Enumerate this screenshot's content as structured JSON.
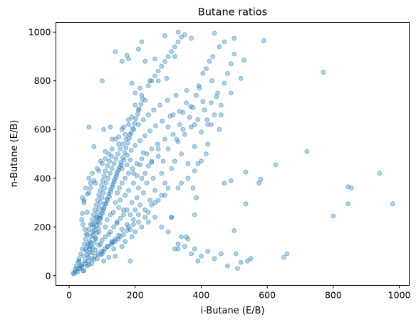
{
  "chart_data": {
    "type": "scatter",
    "title": "Butane ratios",
    "xlabel": "i-Butane (E/B)",
    "ylabel": "n-Butane (E/B)",
    "xlim": [
      -40,
      1030
    ],
    "ylim": [
      -40,
      1040
    ],
    "xticks": [
      0,
      200,
      400,
      600,
      800,
      1000
    ],
    "yticks": [
      0,
      200,
      400,
      600,
      800,
      1000
    ],
    "xtick_labels": [
      "0",
      "200",
      "400",
      "600",
      "800",
      "1000"
    ],
    "ytick_labels": [
      "0",
      "200",
      "400",
      "600",
      "800",
      "1000"
    ],
    "grid": false,
    "legend": "none",
    "marker_color": "#1f77b4",
    "marker_alpha": 0.35,
    "points": [
      [
        12,
        10
      ],
      [
        18,
        25
      ],
      [
        22,
        40
      ],
      [
        25,
        15
      ],
      [
        28,
        55
      ],
      [
        30,
        70
      ],
      [
        32,
        30
      ],
      [
        35,
        90
      ],
      [
        38,
        45
      ],
      [
        40,
        110
      ],
      [
        42,
        20
      ],
      [
        44,
        80
      ],
      [
        46,
        130
      ],
      [
        48,
        60
      ],
      [
        50,
        150
      ],
      [
        52,
        100
      ],
      [
        54,
        40
      ],
      [
        55,
        170
      ],
      [
        57,
        120
      ],
      [
        58,
        75
      ],
      [
        60,
        190
      ],
      [
        62,
        140
      ],
      [
        63,
        95
      ],
      [
        65,
        210
      ],
      [
        66,
        160
      ],
      [
        68,
        50
      ],
      [
        70,
        230
      ],
      [
        71,
        180
      ],
      [
        72,
        115
      ],
      [
        74,
        250
      ],
      [
        75,
        200
      ],
      [
        76,
        135
      ],
      [
        78,
        270
      ],
      [
        79,
        220
      ],
      [
        80,
        155
      ],
      [
        82,
        290
      ],
      [
        83,
        240
      ],
      [
        84,
        175
      ],
      [
        86,
        310
      ],
      [
        87,
        260
      ],
      [
        88,
        195
      ],
      [
        90,
        330
      ],
      [
        91,
        280
      ],
      [
        92,
        215
      ],
      [
        94,
        350
      ],
      [
        95,
        300
      ],
      [
        96,
        235
      ],
      [
        98,
        370
      ],
      [
        99,
        320
      ],
      [
        100,
        255
      ],
      [
        102,
        390
      ],
      [
        103,
        340
      ],
      [
        104,
        275
      ],
      [
        106,
        410
      ],
      [
        107,
        360
      ],
      [
        108,
        295
      ],
      [
        110,
        430
      ],
      [
        112,
        380
      ],
      [
        114,
        315
      ],
      [
        116,
        450
      ],
      [
        118,
        400
      ],
      [
        120,
        335
      ],
      [
        122,
        470
      ],
      [
        124,
        420
      ],
      [
        126,
        355
      ],
      [
        128,
        490
      ],
      [
        130,
        440
      ],
      [
        132,
        375
      ],
      [
        134,
        260
      ],
      [
        136,
        460
      ],
      [
        138,
        395
      ],
      [
        140,
        300
      ],
      [
        142,
        480
      ],
      [
        144,
        415
      ],
      [
        146,
        340
      ],
      [
        148,
        500
      ],
      [
        150,
        435
      ],
      [
        152,
        360
      ],
      [
        155,
        520
      ],
      [
        158,
        455
      ],
      [
        160,
        380
      ],
      [
        163,
        540
      ],
      [
        166,
        475
      ],
      [
        170,
        400
      ],
      [
        173,
        560
      ],
      [
        176,
        495
      ],
      [
        180,
        420
      ],
      [
        184,
        580
      ],
      [
        188,
        515
      ],
      [
        192,
        440
      ],
      [
        196,
        600
      ],
      [
        200,
        535
      ],
      [
        205,
        460
      ],
      [
        210,
        620
      ],
      [
        215,
        555
      ],
      [
        220,
        480
      ],
      [
        225,
        640
      ],
      [
        230,
        575
      ],
      [
        235,
        500
      ],
      [
        240,
        660
      ],
      [
        245,
        595
      ],
      [
        250,
        520
      ],
      [
        256,
        680
      ],
      [
        262,
        615
      ],
      [
        268,
        540
      ],
      [
        275,
        700
      ],
      [
        282,
        635
      ],
      [
        290,
        560
      ],
      [
        298,
        720
      ],
      [
        306,
        655
      ],
      [
        315,
        580
      ],
      [
        324,
        740
      ],
      [
        334,
        675
      ],
      [
        345,
        600
      ],
      [
        356,
        760
      ],
      [
        368,
        695
      ],
      [
        380,
        620
      ],
      [
        392,
        780
      ],
      [
        405,
        715
      ],
      [
        418,
        640
      ],
      [
        432,
        800
      ],
      [
        446,
        735
      ],
      [
        460,
        660
      ],
      [
        40,
        320
      ],
      [
        45,
        300
      ],
      [
        55,
        260
      ],
      [
        60,
        340
      ],
      [
        65,
        360
      ],
      [
        70,
        210
      ],
      [
        75,
        390
      ],
      [
        80,
        150
      ],
      [
        85,
        240
      ],
      [
        90,
        180
      ],
      [
        95,
        130
      ],
      [
        100,
        90
      ],
      [
        105,
        60
      ],
      [
        110,
        200
      ],
      [
        115,
        230
      ],
      [
        120,
        170
      ],
      [
        125,
        250
      ],
      [
        130,
        140
      ],
      [
        135,
        110
      ],
      [
        140,
        80
      ],
      [
        145,
        220
      ],
      [
        150,
        280
      ],
      [
        155,
        310
      ],
      [
        160,
        190
      ],
      [
        165,
        270
      ],
      [
        170,
        330
      ],
      [
        175,
        210
      ],
      [
        180,
        350
      ],
      [
        185,
        250
      ],
      [
        190,
        300
      ],
      [
        195,
        380
      ],
      [
        200,
        270
      ],
      [
        205,
        320
      ],
      [
        210,
        360
      ],
      [
        215,
        290
      ],
      [
        220,
        400
      ],
      [
        225,
        340
      ],
      [
        230,
        420
      ],
      [
        235,
        380
      ],
      [
        240,
        450
      ],
      [
        245,
        310
      ],
      [
        250,
        470
      ],
      [
        255,
        400
      ],
      [
        260,
        350
      ],
      [
        270,
        490
      ],
      [
        280,
        420
      ],
      [
        290,
        380
      ],
      [
        300,
        520
      ],
      [
        310,
        440
      ],
      [
        320,
        470
      ],
      [
        330,
        550
      ],
      [
        340,
        500
      ],
      [
        350,
        580
      ],
      [
        360,
        460
      ],
      [
        370,
        610
      ],
      [
        380,
        530
      ],
      [
        390,
        640
      ],
      [
        400,
        590
      ],
      [
        410,
        680
      ],
      [
        420,
        620
      ],
      [
        430,
        710
      ],
      [
        440,
        660
      ],
      [
        450,
        750
      ],
      [
        460,
        700
      ],
      [
        470,
        790
      ],
      [
        480,
        830
      ],
      [
        490,
        870
      ],
      [
        500,
        910
      ],
      [
        30,
        60
      ],
      [
        35,
        40
      ],
      [
        45,
        20
      ],
      [
        50,
        110
      ],
      [
        55,
        85
      ],
      [
        60,
        45
      ],
      [
        65,
        120
      ],
      [
        70,
        95
      ],
      [
        75,
        65
      ],
      [
        80,
        105
      ],
      [
        85,
        70
      ],
      [
        90,
        125
      ],
      [
        95,
        85
      ],
      [
        100,
        145
      ],
      [
        105,
        100
      ],
      [
        110,
        160
      ],
      [
        115,
        120
      ],
      [
        120,
        75
      ],
      [
        125,
        180
      ],
      [
        130,
        135
      ],
      [
        135,
        200
      ],
      [
        140,
        150
      ],
      [
        145,
        215
      ],
      [
        150,
        165
      ],
      [
        155,
        235
      ],
      [
        160,
        120
      ],
      [
        165,
        250
      ],
      [
        170,
        140
      ],
      [
        175,
        270
      ],
      [
        180,
        200
      ],
      [
        185,
        60
      ],
      [
        190,
        160
      ],
      [
        195,
        230
      ],
      [
        200,
        180
      ],
      [
        210,
        250
      ],
      [
        220,
        200
      ],
      [
        230,
        270
      ],
      [
        240,
        220
      ],
      [
        250,
        290
      ],
      [
        260,
        240
      ],
      [
        270,
        310
      ],
      [
        280,
        200
      ],
      [
        290,
        330
      ],
      [
        300,
        180
      ],
      [
        310,
        240
      ],
      [
        320,
        110
      ],
      [
        330,
        130
      ],
      [
        340,
        160
      ],
      [
        350,
        120
      ],
      [
        360,
        150
      ],
      [
        370,
        90
      ],
      [
        380,
        110
      ],
      [
        390,
        60
      ],
      [
        400,
        80
      ],
      [
        420,
        100
      ],
      [
        440,
        70
      ],
      [
        460,
        90
      ],
      [
        480,
        40
      ],
      [
        510,
        30
      ],
      [
        540,
        60
      ],
      [
        50,
        360
      ],
      [
        60,
        400
      ],
      [
        70,
        420
      ],
      [
        80,
        380
      ],
      [
        90,
        430
      ],
      [
        100,
        460
      ],
      [
        110,
        480
      ],
      [
        120,
        500
      ],
      [
        130,
        520
      ],
      [
        140,
        560
      ],
      [
        150,
        540
      ],
      [
        160,
        600
      ],
      [
        170,
        580
      ],
      [
        180,
        620
      ],
      [
        190,
        650
      ],
      [
        200,
        700
      ],
      [
        210,
        680
      ],
      [
        220,
        740
      ],
      [
        230,
        720
      ],
      [
        240,
        780
      ],
      [
        250,
        800
      ],
      [
        260,
        820
      ],
      [
        270,
        840
      ],
      [
        280,
        860
      ],
      [
        290,
        880
      ],
      [
        300,
        900
      ],
      [
        310,
        920
      ],
      [
        320,
        940
      ],
      [
        330,
        960
      ],
      [
        340,
        980
      ],
      [
        350,
        990
      ],
      [
        140,
        920
      ],
      [
        180,
        890
      ],
      [
        220,
        960
      ],
      [
        290,
        985
      ],
      [
        370,
        975
      ],
      [
        440,
        995
      ],
      [
        500,
        975
      ],
      [
        590,
        965
      ],
      [
        770,
        835
      ],
      [
        720,
        510
      ],
      [
        625,
        455
      ],
      [
        575,
        380
      ],
      [
        535,
        425
      ],
      [
        940,
        420
      ],
      [
        980,
        295
      ],
      [
        845,
        365
      ],
      [
        855,
        360
      ],
      [
        845,
        295
      ],
      [
        800,
        245
      ],
      [
        535,
        295
      ],
      [
        500,
        185
      ],
      [
        490,
        390
      ],
      [
        380,
        250
      ],
      [
        385,
        320
      ],
      [
        375,
        360
      ],
      [
        355,
        160
      ],
      [
        330,
        360
      ],
      [
        310,
        240
      ],
      [
        330,
        110
      ],
      [
        580,
        395
      ],
      [
        660,
        90
      ],
      [
        650,
        75
      ],
      [
        550,
        70
      ],
      [
        520,
        55
      ],
      [
        505,
        90
      ],
      [
        470,
        380
      ],
      [
        455,
        600
      ],
      [
        430,
        620
      ],
      [
        420,
        540
      ],
      [
        415,
        500
      ],
      [
        400,
        470
      ],
      [
        390,
        460
      ],
      [
        380,
        430
      ],
      [
        360,
        400
      ],
      [
        340,
        380
      ],
      [
        300,
        360
      ],
      [
        280,
        330
      ],
      [
        260,
        300
      ],
      [
        240,
        260
      ],
      [
        230,
        240
      ],
      [
        210,
        220
      ],
      [
        195,
        210
      ],
      [
        185,
        190
      ],
      [
        175,
        185
      ],
      [
        165,
        170
      ],
      [
        155,
        160
      ],
      [
        148,
        150
      ],
      [
        138,
        140
      ],
      [
        128,
        130
      ],
      [
        118,
        120
      ],
      [
        108,
        110
      ],
      [
        98,
        100
      ],
      [
        88,
        90
      ],
      [
        78,
        80
      ],
      [
        68,
        70
      ],
      [
        58,
        60
      ],
      [
        48,
        50
      ],
      [
        38,
        35
      ],
      [
        28,
        30
      ],
      [
        20,
        18
      ],
      [
        15,
        8
      ],
      [
        60,
        610
      ],
      [
        75,
        530
      ],
      [
        105,
        600
      ],
      [
        125,
        610
      ],
      [
        160,
        440
      ],
      [
        175,
        455
      ],
      [
        185,
        475
      ],
      [
        195,
        420
      ],
      [
        205,
        410
      ],
      [
        215,
        455
      ],
      [
        225,
        505
      ],
      [
        250,
        465
      ],
      [
        270,
        520
      ],
      [
        285,
        470
      ],
      [
        300,
        610
      ],
      [
        315,
        660
      ],
      [
        325,
        560
      ],
      [
        335,
        620
      ],
      [
        345,
        670
      ],
      [
        355,
        710
      ],
      [
        365,
        650
      ],
      [
        375,
        690
      ],
      [
        385,
        740
      ],
      [
        395,
        770
      ],
      [
        405,
        830
      ],
      [
        415,
        850
      ],
      [
        425,
        880
      ],
      [
        435,
        900
      ],
      [
        455,
        940
      ],
      [
        470,
        960
      ],
      [
        520,
        810
      ],
      [
        490,
        750
      ],
      [
        530,
        885
      ],
      [
        320,
        900
      ],
      [
        330,
        1000
      ],
      [
        260,
        890
      ],
      [
        230,
        880
      ],
      [
        160,
        880
      ],
      [
        175,
        905
      ],
      [
        210,
        930
      ],
      [
        100,
        800
      ],
      [
        190,
        790
      ],
      [
        200,
        750
      ],
      [
        215,
        770
      ],
      [
        245,
        800
      ],
      [
        270,
        800
      ],
      [
        295,
        810
      ],
      [
        165,
        610
      ],
      [
        180,
        640
      ],
      [
        150,
        570
      ],
      [
        130,
        560
      ],
      [
        110,
        510
      ],
      [
        95,
        470
      ],
      [
        85,
        440
      ],
      [
        65,
        380
      ],
      [
        55,
        335
      ],
      [
        45,
        310
      ],
      [
        40,
        255
      ],
      [
        38,
        230
      ],
      [
        42,
        210
      ],
      [
        48,
        190
      ],
      [
        52,
        170
      ],
      [
        58,
        130
      ],
      [
        62,
        110
      ],
      [
        66,
        135
      ],
      [
        72,
        165
      ],
      [
        76,
        185
      ],
      [
        82,
        205
      ],
      [
        86,
        220
      ],
      [
        92,
        235
      ],
      [
        96,
        245
      ],
      [
        102,
        265
      ],
      [
        106,
        280
      ],
      [
        112,
        295
      ],
      [
        116,
        310
      ],
      [
        122,
        325
      ],
      [
        126,
        345
      ],
      [
        132,
        365
      ],
      [
        136,
        385
      ],
      [
        142,
        405
      ],
      [
        146,
        425
      ],
      [
        152,
        445
      ],
      [
        156,
        465
      ],
      [
        162,
        485
      ],
      [
        168,
        505
      ],
      [
        172,
        525
      ],
      [
        178,
        545
      ],
      [
        182,
        565
      ],
      [
        188,
        585
      ],
      [
        192,
        605
      ],
      [
        198,
        625
      ],
      [
        202,
        645
      ],
      [
        208,
        665
      ],
      [
        212,
        685
      ],
      [
        218,
        705
      ],
      [
        222,
        725
      ]
    ]
  }
}
